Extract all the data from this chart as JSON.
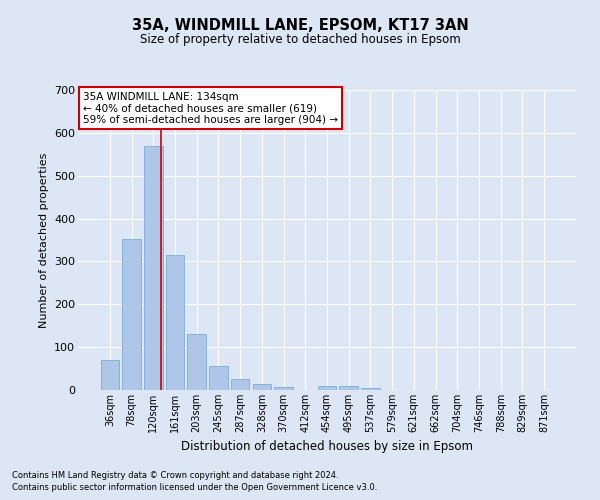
{
  "title1": "35A, WINDMILL LANE, EPSOM, KT17 3AN",
  "title2": "Size of property relative to detached houses in Epsom",
  "xlabel": "Distribution of detached houses by size in Epsom",
  "ylabel": "Number of detached properties",
  "bar_labels": [
    "36sqm",
    "78sqm",
    "120sqm",
    "161sqm",
    "203sqm",
    "245sqm",
    "287sqm",
    "328sqm",
    "370sqm",
    "412sqm",
    "454sqm",
    "495sqm",
    "537sqm",
    "579sqm",
    "621sqm",
    "662sqm",
    "704sqm",
    "746sqm",
    "788sqm",
    "829sqm",
    "871sqm"
  ],
  "bar_values": [
    70,
    352,
    570,
    315,
    130,
    57,
    25,
    15,
    8,
    0,
    10,
    10,
    5,
    0,
    0,
    0,
    0,
    0,
    0,
    0,
    0
  ],
  "bar_color": "#aec6e8",
  "bar_edge_color": "#7aadd4",
  "background_color": "#dce6f5",
  "grid_color": "#ffffff",
  "vline_color": "#cc0000",
  "annotation_text": "35A WINDMILL LANE: 134sqm\n← 40% of detached houses are smaller (619)\n59% of semi-detached houses are larger (904) →",
  "annotation_box_color": "white",
  "annotation_box_edge": "#cc0000",
  "ylim": [
    0,
    700
  ],
  "yticks": [
    0,
    100,
    200,
    300,
    400,
    500,
    600,
    700
  ],
  "footer1": "Contains HM Land Registry data © Crown copyright and database right 2024.",
  "footer2": "Contains public sector information licensed under the Open Government Licence v3.0."
}
